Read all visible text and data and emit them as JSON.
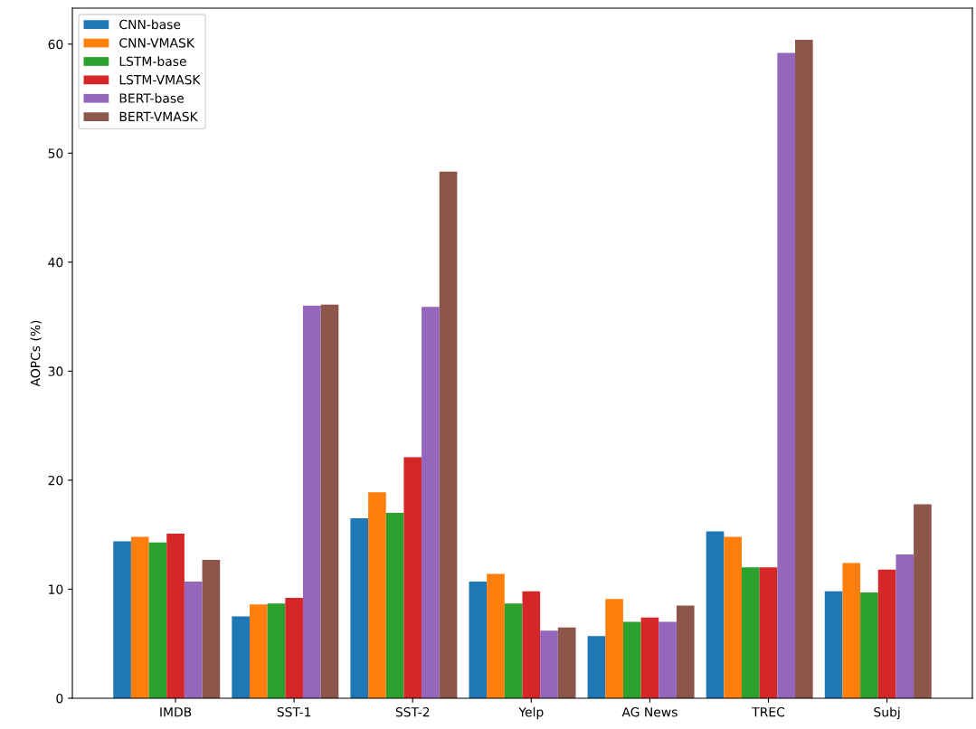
{
  "chart_data": {
    "type": "bar",
    "ylabel": "AOPCs (%)",
    "categories": [
      "IMDB",
      "SST-1",
      "SST-2",
      "Yelp",
      "AG News",
      "TREC",
      "Subj"
    ],
    "series": [
      {
        "name": "CNN-base",
        "color": "#1f77b4",
        "values": [
          14.4,
          7.5,
          16.5,
          10.7,
          5.7,
          15.3,
          9.8
        ]
      },
      {
        "name": "CNN-VMASK",
        "color": "#ff7f0e",
        "values": [
          14.8,
          8.6,
          18.9,
          11.4,
          9.1,
          14.8,
          12.4
        ]
      },
      {
        "name": "LSTM-base",
        "color": "#2ca02c",
        "values": [
          14.3,
          8.7,
          17.0,
          8.7,
          7.0,
          12.0,
          9.7
        ]
      },
      {
        "name": "LSTM-VMASK",
        "color": "#d62728",
        "values": [
          15.1,
          9.2,
          22.1,
          9.8,
          7.4,
          12.0,
          11.8
        ]
      },
      {
        "name": "BERT-base",
        "color": "#9467bd",
        "values": [
          10.7,
          36.0,
          35.9,
          6.2,
          7.0,
          59.2,
          13.2
        ]
      },
      {
        "name": "BERT-VMASK",
        "color": "#8c564b",
        "values": [
          12.7,
          36.1,
          48.3,
          6.5,
          8.5,
          60.4,
          17.8
        ]
      }
    ],
    "ylim": [
      0,
      63.3
    ],
    "yticks": [
      0,
      10,
      20,
      30,
      40,
      50,
      60
    ],
    "grid": false,
    "legend": "top left"
  }
}
